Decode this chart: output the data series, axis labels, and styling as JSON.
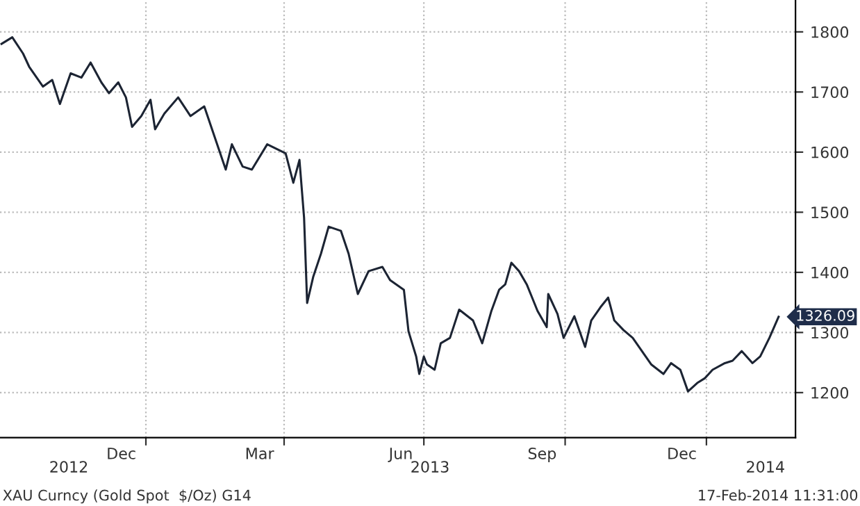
{
  "chart_data": {
    "type": "line",
    "x": [
      "2012-09-29",
      "2012-10-06",
      "2012-10-13",
      "2012-10-17",
      "2012-10-26",
      "2012-11-01",
      "2012-11-06",
      "2012-11-13",
      "2012-11-20",
      "2012-11-26",
      "2012-12-03",
      "2012-12-08",
      "2012-12-14",
      "2012-12-19",
      "2012-12-23",
      "2012-12-29",
      "2013-01-04",
      "2013-01-07",
      "2013-01-13",
      "2013-01-22",
      "2013-01-30",
      "2013-02-08",
      "2013-02-16",
      "2013-02-22",
      "2013-02-26",
      "2013-03-05",
      "2013-03-11",
      "2013-03-21",
      "2013-04-02",
      "2013-04-07",
      "2013-04-11",
      "2013-04-14",
      "2013-04-16",
      "2013-04-20",
      "2013-04-25",
      "2013-04-30",
      "2013-05-08",
      "2013-05-13",
      "2013-05-19",
      "2013-05-26",
      "2013-06-04",
      "2013-06-09",
      "2013-06-18",
      "2013-06-21",
      "2013-06-26",
      "2013-06-28",
      "2013-07-01",
      "2013-07-03",
      "2013-07-08",
      "2013-07-12",
      "2013-07-18",
      "2013-07-24",
      "2013-08-02",
      "2013-08-08",
      "2013-08-14",
      "2013-08-19",
      "2013-08-23",
      "2013-08-27",
      "2013-09-01",
      "2013-09-06",
      "2013-09-13",
      "2013-09-19",
      "2013-09-20",
      "2013-09-26",
      "2013-09-30",
      "2013-10-07",
      "2013-10-14",
      "2013-10-18",
      "2013-10-24",
      "2013-10-29",
      "2013-11-02",
      "2013-11-08",
      "2013-11-14",
      "2013-11-20",
      "2013-11-26",
      "2013-12-04",
      "2013-12-09",
      "2013-12-15",
      "2013-12-20",
      "2013-12-26",
      "2013-12-31",
      "2014-01-05",
      "2014-01-13",
      "2014-01-18",
      "2014-01-24",
      "2014-01-31",
      "2014-02-05",
      "2014-02-11",
      "2014-02-17"
    ],
    "series": [
      {
        "color": "#1c2433",
        "values": [
          1780,
          1791,
          1764,
          1742,
          1709,
          1720,
          1680,
          1731,
          1724,
          1749,
          1716,
          1698,
          1716,
          1691,
          1642,
          1660,
          1687,
          1638,
          1664,
          1691,
          1660,
          1676,
          1616,
          1571,
          1613,
          1576,
          1571,
          1613,
          1598,
          1549,
          1587,
          1491,
          1349,
          1393,
          1431,
          1476,
          1469,
          1431,
          1364,
          1402,
          1409,
          1387,
          1371,
          1302,
          1260,
          1231,
          1260,
          1247,
          1238,
          1282,
          1291,
          1338,
          1320,
          1282,
          1336,
          1371,
          1380,
          1416,
          1402,
          1380,
          1336,
          1309,
          1364,
          1331,
          1291,
          1327,
          1276,
          1320,
          1342,
          1358,
          1320,
          1304,
          1291,
          1269,
          1247,
          1231,
          1249,
          1238,
          1202,
          1216,
          1224,
          1238,
          1249,
          1253,
          1269,
          1249,
          1260,
          1291,
          1326.09
        ]
      }
    ],
    "xlim": [
      "2012-09-28",
      "2014-02-28"
    ],
    "xticks": [
      {
        "value": "2012-12-16",
        "label": "Dec"
      },
      {
        "value": "2013-01-01",
        "label": null
      },
      {
        "value": "2013-03-16",
        "label": "Mar"
      },
      {
        "value": "2013-04-01",
        "label": null
      },
      {
        "value": "2013-06-16",
        "label": "Jun"
      },
      {
        "value": "2013-07-01",
        "label": null
      },
      {
        "value": "2013-09-16",
        "label": "Sep"
      },
      {
        "value": "2013-10-01",
        "label": null
      },
      {
        "value": "2013-12-16",
        "label": "Dec"
      },
      {
        "value": "2014-01-01",
        "label": null
      }
    ],
    "ylim": [
      1125,
      1853
    ],
    "yticks": [
      1200,
      1300,
      1400,
      1500,
      1600,
      1700,
      1800
    ],
    "grid": true,
    "legend": false,
    "line_style": "solid",
    "marker": "none",
    "annotations": [
      {
        "text": "1326.09",
        "x": "2014-02-17",
        "y": 1326.09
      },
      "2012",
      "2013",
      "2014",
      "XAU Curncy (Gold Spot  $/Oz) G14",
      "17-Feb-2014 11:31:00"
    ]
  }
}
